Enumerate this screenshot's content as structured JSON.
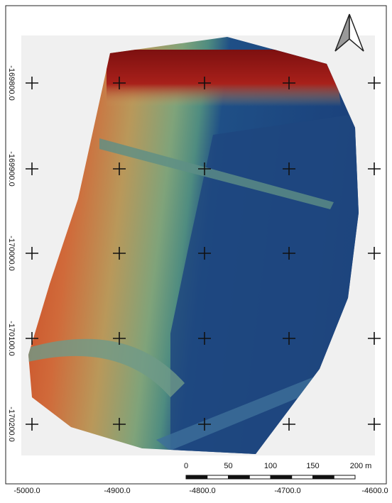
{
  "map": {
    "x_labels": [
      "-5000.0",
      "-4900.0",
      "-4800.0",
      "-4700.0",
      "-4600.0"
    ],
    "y_labels": [
      "-169800.0",
      "-169900.0",
      "-170000.0",
      "-170100.0",
      "-170200.0"
    ],
    "scale_labels": [
      "0",
      "50",
      "100",
      "150",
      "200 m"
    ]
  }
}
